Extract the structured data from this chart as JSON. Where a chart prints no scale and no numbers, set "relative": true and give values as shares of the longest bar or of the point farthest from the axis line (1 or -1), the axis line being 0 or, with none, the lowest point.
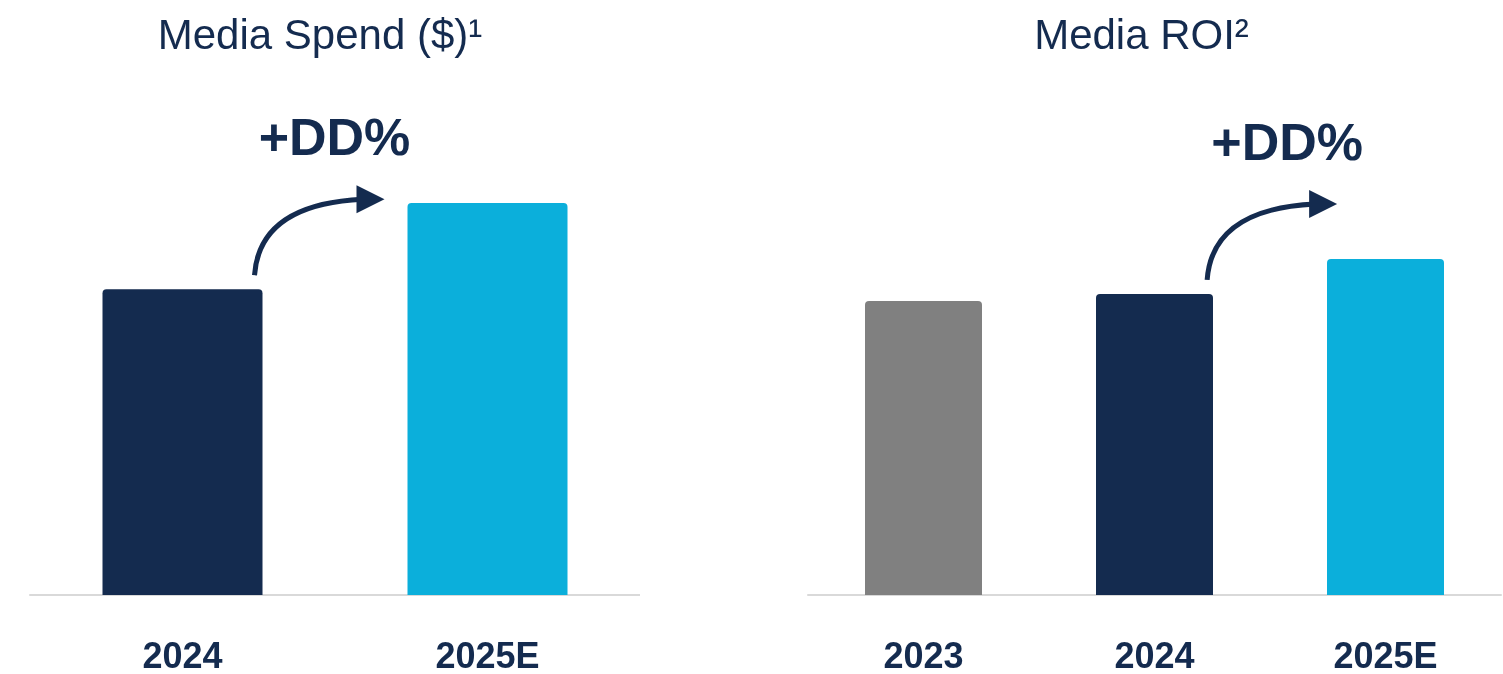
{
  "chart_data": [
    {
      "type": "bar",
      "title": "Media Spend ($)¹",
      "categories": [
        "2024",
        "2025E"
      ],
      "relative": true,
      "colors": [
        "#142b4f",
        "#0bafdb"
      ],
      "values": [
        0.78,
        1
      ],
      "annotations": [
        "+DD%"
      ]
    },
    {
      "type": "bar",
      "title": "Media ROI²",
      "categories": [
        "2023",
        "2024",
        "2025E"
      ],
      "relative": true,
      "colors": [
        "#808080",
        "#142b4f",
        "#0bafdb"
      ],
      "values": [
        0.875,
        0.896,
        1
      ],
      "annotations": [
        "+DD%"
      ]
    }
  ]
}
